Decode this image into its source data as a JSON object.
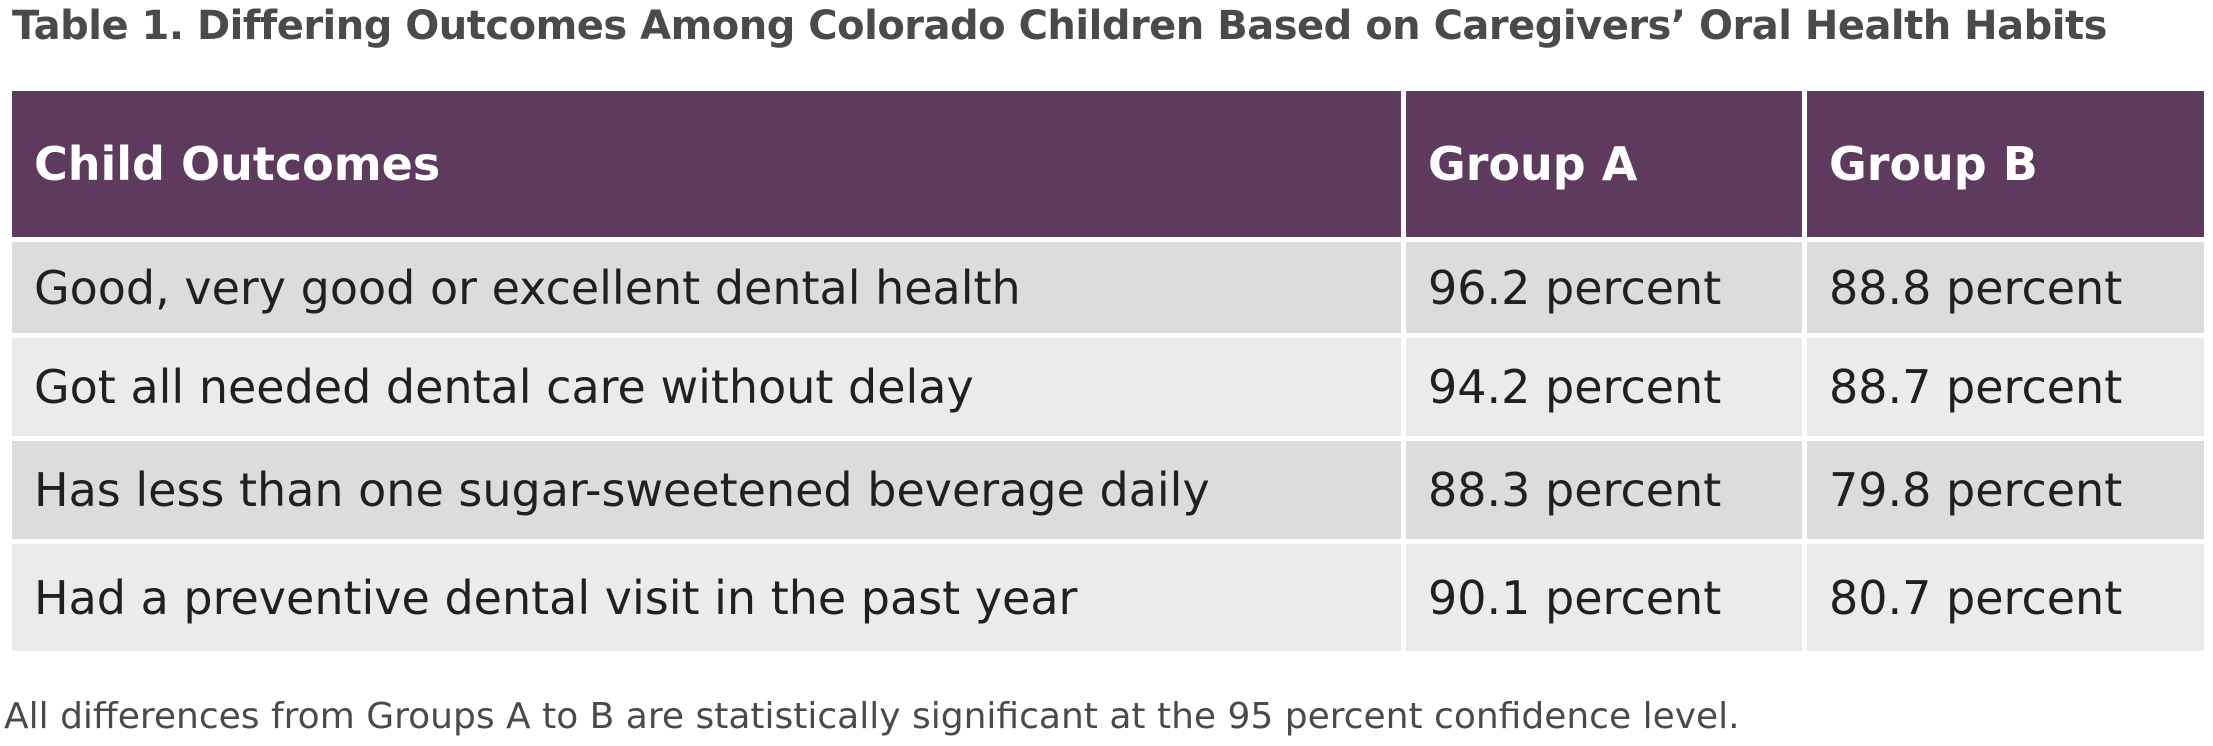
{
  "title": "Table 1. Differing Outcomes Among Colorado Children Based on Caregivers’ Oral Health Habits",
  "table": {
    "headers": [
      "Child Outcomes",
      "Group A",
      "Group B"
    ],
    "rows": [
      [
        "Good, very good or excellent dental health",
        "96.2 percent",
        "88.8 percent"
      ],
      [
        "Got all needed dental care without delay",
        "94.2 percent",
        "88.7 percent"
      ],
      [
        "Has less than one sugar-sweetened beverage daily",
        "88.3 percent",
        "79.8 percent"
      ],
      [
        "Had a preventive dental visit in the past year",
        "90.1 percent",
        "80.7 percent"
      ]
    ]
  },
  "footnote": "All differences from Groups A to B are statistically significant at the 95 percent confidence level.",
  "colors": {
    "header_bg": "#5e3a5f",
    "header_text": "#ffffff",
    "row_odd_bg": "#dcdcdd",
    "row_even_bg": "#ebebeb",
    "body_text": "#231f20",
    "title_text": "#4a4a4a"
  }
}
